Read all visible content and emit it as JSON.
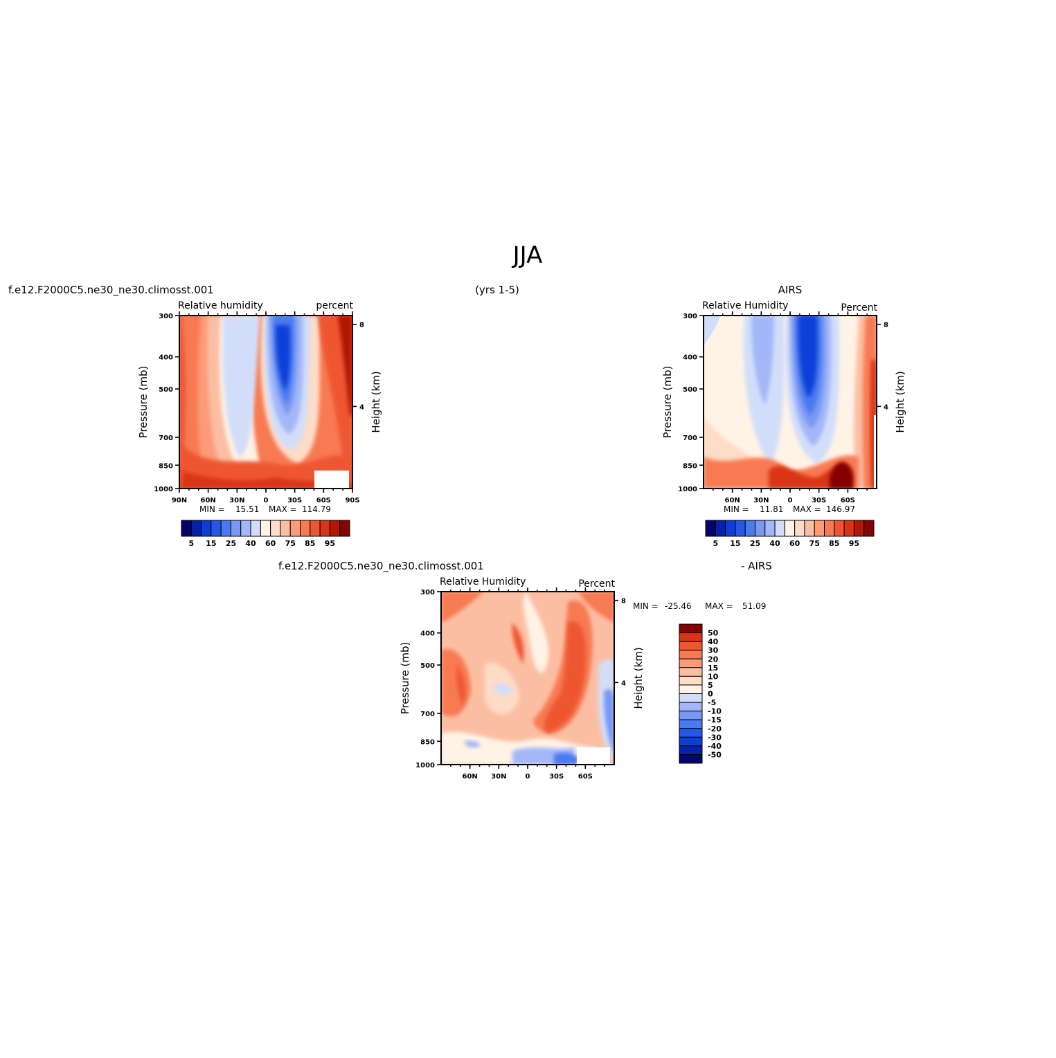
{
  "figure": {
    "title": "JJA",
    "subtitle": "(yrs 1-5)",
    "case_label": "f.e12.F2000C5.ne30_ne30.climosst.001",
    "diff_label": "f.e12.F2000C5.ne30_ne30.climosst.001",
    "diff_suffix": "- AIRS",
    "obs_label": "AIRS"
  },
  "colors": {
    "rh_scale": [
      "#03056c",
      "#0421a8",
      "#0b3fd8",
      "#2459e8",
      "#4a7af0",
      "#7898f4",
      "#a3b7f8",
      "#d2def9",
      "#fff3e6",
      "#fddcc8",
      "#fcbea3",
      "#fb9b78",
      "#f77a52",
      "#ee5630",
      "#d93416",
      "#b21806",
      "#850400"
    ],
    "diff_scale": [
      "#03056c",
      "#0421a8",
      "#0b3fd8",
      "#2459e8",
      "#4a7af0",
      "#7898f4",
      "#a3b7f8",
      "#d2def9",
      "#fff3e6",
      "#fddcc8",
      "#fcbea3",
      "#fb9b78",
      "#f77a52",
      "#ee5630",
      "#d93416",
      "#850400"
    ]
  },
  "chart_data": [
    {
      "type": "heatmap",
      "panel": "model",
      "title_left": "Relative humidity",
      "title_right": "percent",
      "ylabel": "Pressure (mb)",
      "ylabel_right": "Height (km)",
      "x_ticks": [
        "90N",
        "60N",
        "30N",
        "0",
        "30S",
        "60S",
        "90S"
      ],
      "x_range": [
        90,
        -90
      ],
      "y_ticks": [
        300,
        400,
        500,
        700,
        850,
        1000
      ],
      "y_range": [
        300,
        1000
      ],
      "y_right_ticks": [
        8,
        4
      ],
      "min_label": "MIN =",
      "min_value": "15.51",
      "max_label": "MAX =",
      "max_value": "114.79",
      "colorbar_labels": [
        "5",
        "15",
        "25",
        "40",
        "60",
        "75",
        "85",
        "95"
      ]
    },
    {
      "type": "heatmap",
      "panel": "obs",
      "title_left": "Relative Humidity",
      "title_right": "Percent",
      "ylabel": "Pressure (mb)",
      "ylabel_right": "Height (km)",
      "x_ticks": [
        "60N",
        "30N",
        "0",
        "30S",
        "60S"
      ],
      "x_range": [
        90,
        -90
      ],
      "y_ticks": [
        300,
        400,
        500,
        700,
        850,
        1000
      ],
      "y_range": [
        300,
        1000
      ],
      "y_right_ticks": [
        8,
        4
      ],
      "min_label": "MIN =",
      "min_value": "11.81",
      "max_label": "MAX =",
      "max_value": "146.97",
      "colorbar_labels": [
        "5",
        "15",
        "25",
        "40",
        "60",
        "75",
        "85",
        "95"
      ]
    },
    {
      "type": "heatmap",
      "panel": "diff",
      "title_left": "Relative Humidity",
      "title_right": "Percent",
      "ylabel": "Pressure (mb)",
      "ylabel_right": "Height (km)",
      "x_ticks": [
        "60N",
        "30N",
        "0",
        "30S",
        "60S"
      ],
      "x_range": [
        90,
        -90
      ],
      "y_ticks": [
        300,
        400,
        500,
        700,
        850,
        1000
      ],
      "y_range": [
        300,
        1000
      ],
      "y_right_ticks": [
        8,
        4
      ],
      "min_label": "MIN =",
      "min_value": "-25.46",
      "max_label": "MAX =",
      "max_value": "51.09",
      "colorbar_labels": [
        "50",
        "40",
        "30",
        "20",
        "15",
        "10",
        "5",
        "0",
        "-5",
        "-10",
        "-15",
        "-20",
        "-30",
        "-40",
        "-50"
      ]
    }
  ]
}
